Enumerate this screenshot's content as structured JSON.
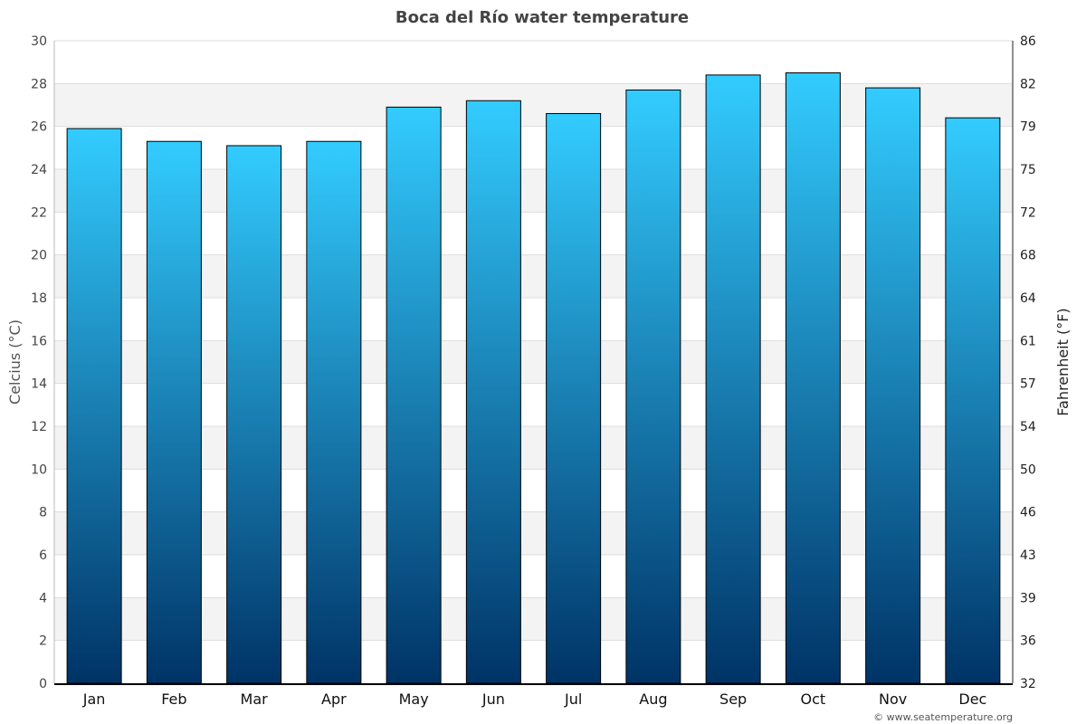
{
  "chart_data": {
    "type": "bar",
    "title": "Boca del Río water temperature",
    "categories": [
      "Jan",
      "Feb",
      "Mar",
      "Apr",
      "May",
      "Jun",
      "Jul",
      "Aug",
      "Sep",
      "Oct",
      "Nov",
      "Dec"
    ],
    "values": [
      25.9,
      25.3,
      25.1,
      25.3,
      26.9,
      27.2,
      26.6,
      27.7,
      28.4,
      28.5,
      27.8,
      26.4
    ],
    "ylabel": "Celcius (°C)",
    "y2label": "Fahrenheit (°F)",
    "ylim": [
      0,
      30
    ],
    "yticks": [
      "0",
      "2",
      "4",
      "6",
      "8",
      "10",
      "12",
      "14",
      "16",
      "18",
      "20",
      "22",
      "24",
      "26",
      "28",
      "30"
    ],
    "y2ticks": [
      "32",
      "36",
      "39",
      "43",
      "46",
      "50",
      "54",
      "57",
      "61",
      "64",
      "68",
      "72",
      "75",
      "79",
      "82",
      "86"
    ],
    "grid": true,
    "colors": {
      "bar_top": "#33ccff",
      "bar_bottom": "#003366",
      "band": "#f3f3f3"
    }
  },
  "credit": "© www.seatemperature.org"
}
